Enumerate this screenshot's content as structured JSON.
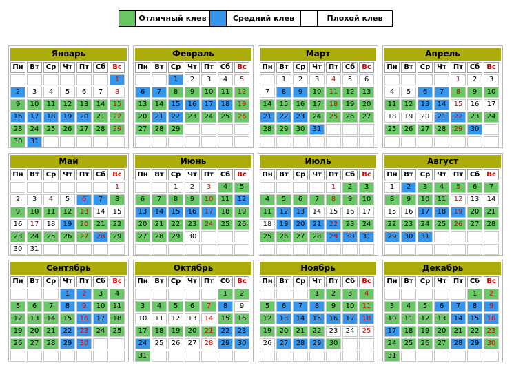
{
  "legend": {
    "excellent": "Отличный клев",
    "medium": "Средний клев",
    "poor": "Плохой клев",
    "colors": {
      "excellent": "#69c766",
      "medium": "#3596ec",
      "poor": "#ffffff"
    }
  },
  "weekdays": [
    "Пн",
    "Вт",
    "Ср",
    "Чт",
    "Пт",
    "Сб",
    "Вс"
  ],
  "months": [
    {
      "name": "Январь",
      "start": 6,
      "days": 31,
      "g": [
        9,
        10,
        11,
        12,
        13,
        14,
        15,
        21,
        22,
        23,
        24,
        25,
        26,
        27,
        28,
        29,
        30
      ],
      "b": [
        1,
        2,
        16,
        17,
        18,
        19,
        20,
        31
      ],
      "red": [
        1,
        8,
        15,
        22,
        29
      ]
    },
    {
      "name": "Февраль",
      "start": 2,
      "days": 29,
      "g": [
        8,
        9,
        10,
        11,
        12,
        13,
        14,
        19,
        20,
        23,
        24,
        25,
        26,
        27,
        28,
        29
      ],
      "b": [
        1,
        6,
        7,
        15,
        16,
        17,
        18,
        21,
        22
      ],
      "red": [
        5,
        12,
        19,
        26
      ]
    },
    {
      "name": "Март",
      "start": 1,
      "days": 31,
      "g": [
        10,
        11,
        12,
        13,
        14,
        15,
        16,
        17,
        18,
        19,
        20,
        24,
        25,
        26,
        27,
        28,
        29,
        30
      ],
      "b": [
        8,
        9,
        21,
        22,
        23,
        31
      ],
      "red": [
        4,
        11,
        18,
        25
      ]
    },
    {
      "name": "Апрель",
      "start": 4,
      "days": 30,
      "g": [
        8,
        9,
        10,
        11,
        12,
        23,
        24,
        25,
        26,
        27,
        28,
        29
      ],
      "b": [
        6,
        7,
        13,
        14,
        21,
        22,
        30
      ],
      "red": [
        1,
        8,
        15,
        22,
        29
      ]
    },
    {
      "name": "Май",
      "start": 6,
      "days": 31,
      "g": [
        8,
        9,
        10,
        11,
        12,
        13,
        20,
        21,
        22,
        23,
        24,
        25,
        26,
        27,
        29
      ],
      "b": [
        6,
        7,
        19,
        28
      ],
      "red": [
        1,
        6,
        13,
        17,
        20,
        27,
        28
      ]
    },
    {
      "name": "Июнь",
      "start": 2,
      "days": 30,
      "g": [
        4,
        5,
        6,
        7,
        8,
        9,
        10,
        11,
        18,
        19,
        20,
        21,
        22,
        23,
        24,
        25,
        26,
        27,
        28,
        29
      ],
      "b": [
        12,
        13,
        14,
        15,
        16,
        17
      ],
      "red": [
        3,
        10,
        17,
        24
      ]
    },
    {
      "name": "Июль",
      "start": 4,
      "days": 31,
      "g": [
        2,
        3,
        4,
        5,
        6,
        7,
        8,
        9,
        10,
        11,
        23,
        24,
        25,
        26,
        27,
        28
      ],
      "b": [
        12,
        13,
        19,
        20,
        21,
        22,
        29,
        30,
        31
      ],
      "red": [
        1,
        8,
        22,
        29
      ]
    },
    {
      "name": "Август",
      "start": 0,
      "days": 31,
      "g": [
        3,
        4,
        5,
        6,
        7,
        8,
        9,
        10,
        11,
        20,
        21,
        22,
        23,
        24,
        25,
        26,
        27,
        28
      ],
      "b": [
        2,
        17,
        18,
        19,
        29,
        30,
        31
      ],
      "red": [
        5,
        12,
        19,
        26
      ]
    },
    {
      "name": "Сентябрь",
      "start": 3,
      "days": 30,
      "g": [
        3,
        4,
        5,
        6,
        7,
        8,
        9,
        10,
        11,
        12,
        13,
        14,
        15,
        16,
        17,
        18,
        19,
        20,
        21,
        22,
        23,
        24,
        25,
        26,
        27,
        28,
        29,
        30
      ],
      "b": [
        1,
        2,
        8,
        9,
        16,
        17,
        22,
        23,
        29,
        30
      ],
      "red": [
        2,
        9,
        16,
        23,
        30
      ]
    },
    {
      "name": "Октябрь",
      "start": 5,
      "days": 31,
      "g": [
        1,
        2,
        3,
        4,
        5,
        6,
        7,
        15,
        16,
        17,
        18,
        19,
        20,
        21,
        29,
        30,
        31
      ],
      "b": [
        8,
        22,
        23,
        24,
        29,
        30
      ],
      "red": [
        7,
        14,
        21,
        28
      ]
    },
    {
      "name": "Ноябрь",
      "start": 3,
      "days": 30,
      "g": [
        1,
        2,
        3,
        4,
        5,
        6,
        7,
        8,
        9,
        10,
        11,
        12,
        13,
        14,
        15,
        16,
        17,
        18,
        19,
        20,
        21,
        22,
        28,
        29,
        30
      ],
      "b": [
        6,
        7,
        8,
        13,
        14,
        15,
        16,
        17,
        18,
        27,
        28,
        29
      ],
      "red": [
        4,
        11,
        18,
        25
      ]
    },
    {
      "name": "Декабрь",
      "start": 5,
      "days": 31,
      "g": [
        1,
        2,
        3,
        4,
        5,
        6,
        7,
        8,
        9,
        10,
        11,
        12,
        13,
        14,
        15,
        16,
        17,
        18,
        19,
        20,
        21,
        22,
        23,
        24,
        25,
        26,
        27,
        28,
        29,
        30,
        31
      ],
      "b": [
        6,
        7,
        8,
        9,
        14,
        15,
        16,
        17,
        28,
        29
      ],
      "red": [
        2,
        9,
        16,
        23,
        30
      ]
    }
  ]
}
